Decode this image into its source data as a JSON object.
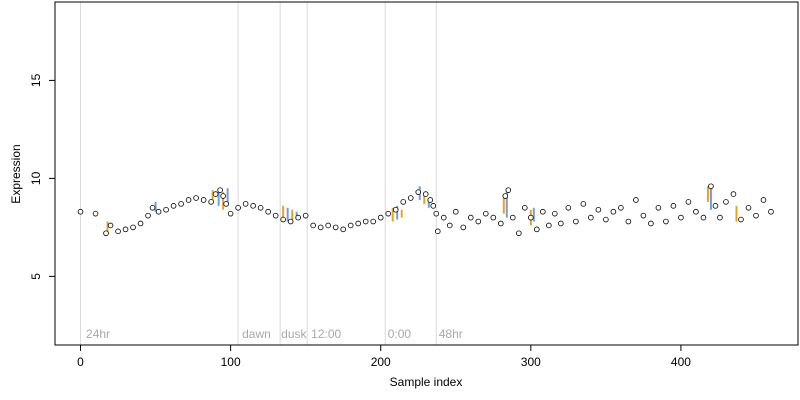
{
  "chart_data": {
    "type": "scatter",
    "xlabel": "Sample index",
    "ylabel": "Expression",
    "xlim": [
      -17,
      478
    ],
    "ylim": [
      1.5,
      19.0
    ],
    "x_ticks": [
      0,
      100,
      200,
      300,
      400
    ],
    "y_ticks": [
      5,
      10,
      15
    ],
    "grid": false,
    "legend": "none",
    "colors": {
      "point_fill": "#ffffff",
      "point_stroke": "#000000",
      "bar_up": "#f0a020",
      "bar_down": "#6f9fdc",
      "vline": "#d9d9d9",
      "annotation": "#a8a8a8"
    },
    "vlines": [
      0,
      105,
      133,
      151,
      203,
      237
    ],
    "annotations": [
      {
        "x": 3,
        "text": "24hr"
      },
      {
        "x": 107,
        "text": "dawn"
      },
      {
        "x": 133,
        "text": "dusk"
      },
      {
        "x": 153,
        "text": "12:00"
      },
      {
        "x": 204,
        "text": "0:00"
      },
      {
        "x": 238,
        "text": "48hr"
      }
    ],
    "series": [
      {
        "x": [
          0,
          10,
          17,
          20,
          25,
          30,
          35,
          40,
          45,
          48,
          52,
          57,
          62,
          67,
          72,
          77,
          82,
          87,
          90,
          93,
          95,
          97,
          100,
          105,
          110,
          115,
          120,
          125,
          130,
          135,
          140,
          145,
          150,
          155,
          160,
          165,
          170,
          175,
          180,
          185,
          190,
          195,
          200,
          205,
          210,
          215,
          220,
          225,
          230,
          233,
          235,
          237,
          238,
          242,
          246,
          250,
          255,
          260,
          265,
          270,
          275,
          280,
          283,
          285,
          288,
          292,
          296,
          300,
          304,
          308,
          312,
          316,
          320,
          325,
          330,
          335,
          340,
          345,
          350,
          355,
          360,
          365,
          370,
          375,
          380,
          385,
          390,
          395,
          400,
          405,
          410,
          415,
          420,
          423,
          426,
          430,
          435,
          440,
          445,
          450,
          455,
          460
        ],
        "y": [
          8.3,
          8.2,
          7.2,
          7.6,
          7.3,
          7.4,
          7.5,
          7.7,
          8.1,
          8.5,
          8.3,
          8.4,
          8.6,
          8.7,
          8.9,
          9.0,
          8.9,
          8.8,
          9.2,
          9.4,
          9.1,
          8.7,
          8.2,
          8.5,
          8.7,
          8.6,
          8.5,
          8.3,
          8.1,
          7.9,
          7.8,
          8.0,
          8.1,
          7.6,
          7.5,
          7.6,
          7.5,
          7.4,
          7.6,
          7.7,
          7.8,
          7.8,
          8.0,
          8.2,
          8.4,
          8.8,
          9.0,
          9.3,
          9.2,
          8.9,
          8.6,
          8.2,
          7.3,
          8.0,
          7.6,
          8.3,
          7.5,
          8.0,
          7.8,
          8.2,
          8.0,
          7.7,
          9.1,
          9.4,
          8.0,
          7.2,
          8.5,
          8.0,
          7.4,
          8.3,
          7.6,
          8.2,
          7.7,
          8.5,
          7.8,
          8.7,
          8.0,
          8.4,
          7.9,
          8.3,
          8.5,
          7.8,
          8.9,
          8.1,
          7.7,
          8.5,
          7.8,
          8.6,
          8.0,
          8.8,
          8.3,
          8.0,
          9.6,
          8.6,
          8.0,
          8.8,
          9.2,
          7.9,
          8.5,
          8.1,
          8.9,
          8.3
        ],
        "bars": [
          [
            18,
            7.2,
            7.8
          ],
          [
            50,
            8.3,
            8.8
          ],
          [
            88,
            8.8,
            9.4
          ],
          [
            92,
            8.6,
            9.4
          ],
          [
            95,
            8.4,
            9.3
          ],
          [
            98,
            8.6,
            9.5
          ],
          [
            135,
            7.9,
            8.6
          ],
          [
            138,
            7.8,
            8.5
          ],
          [
            141,
            7.8,
            8.4
          ],
          [
            144,
            7.9,
            8.3
          ],
          [
            208,
            7.8,
            8.5
          ],
          [
            211,
            7.9,
            8.6
          ],
          [
            214,
            8.0,
            8.4
          ],
          [
            226,
            8.9,
            9.6
          ],
          [
            229,
            8.7,
            9.2
          ],
          [
            232,
            8.5,
            9.0
          ],
          [
            282,
            8.2,
            9.2
          ],
          [
            284,
            8.0,
            9.5
          ],
          [
            300,
            7.6,
            8.4
          ],
          [
            302,
            7.8,
            8.5
          ],
          [
            418,
            8.8,
            9.6
          ],
          [
            420,
            8.4,
            9.7
          ],
          [
            437,
            7.8,
            8.6
          ]
        ]
      }
    ]
  }
}
